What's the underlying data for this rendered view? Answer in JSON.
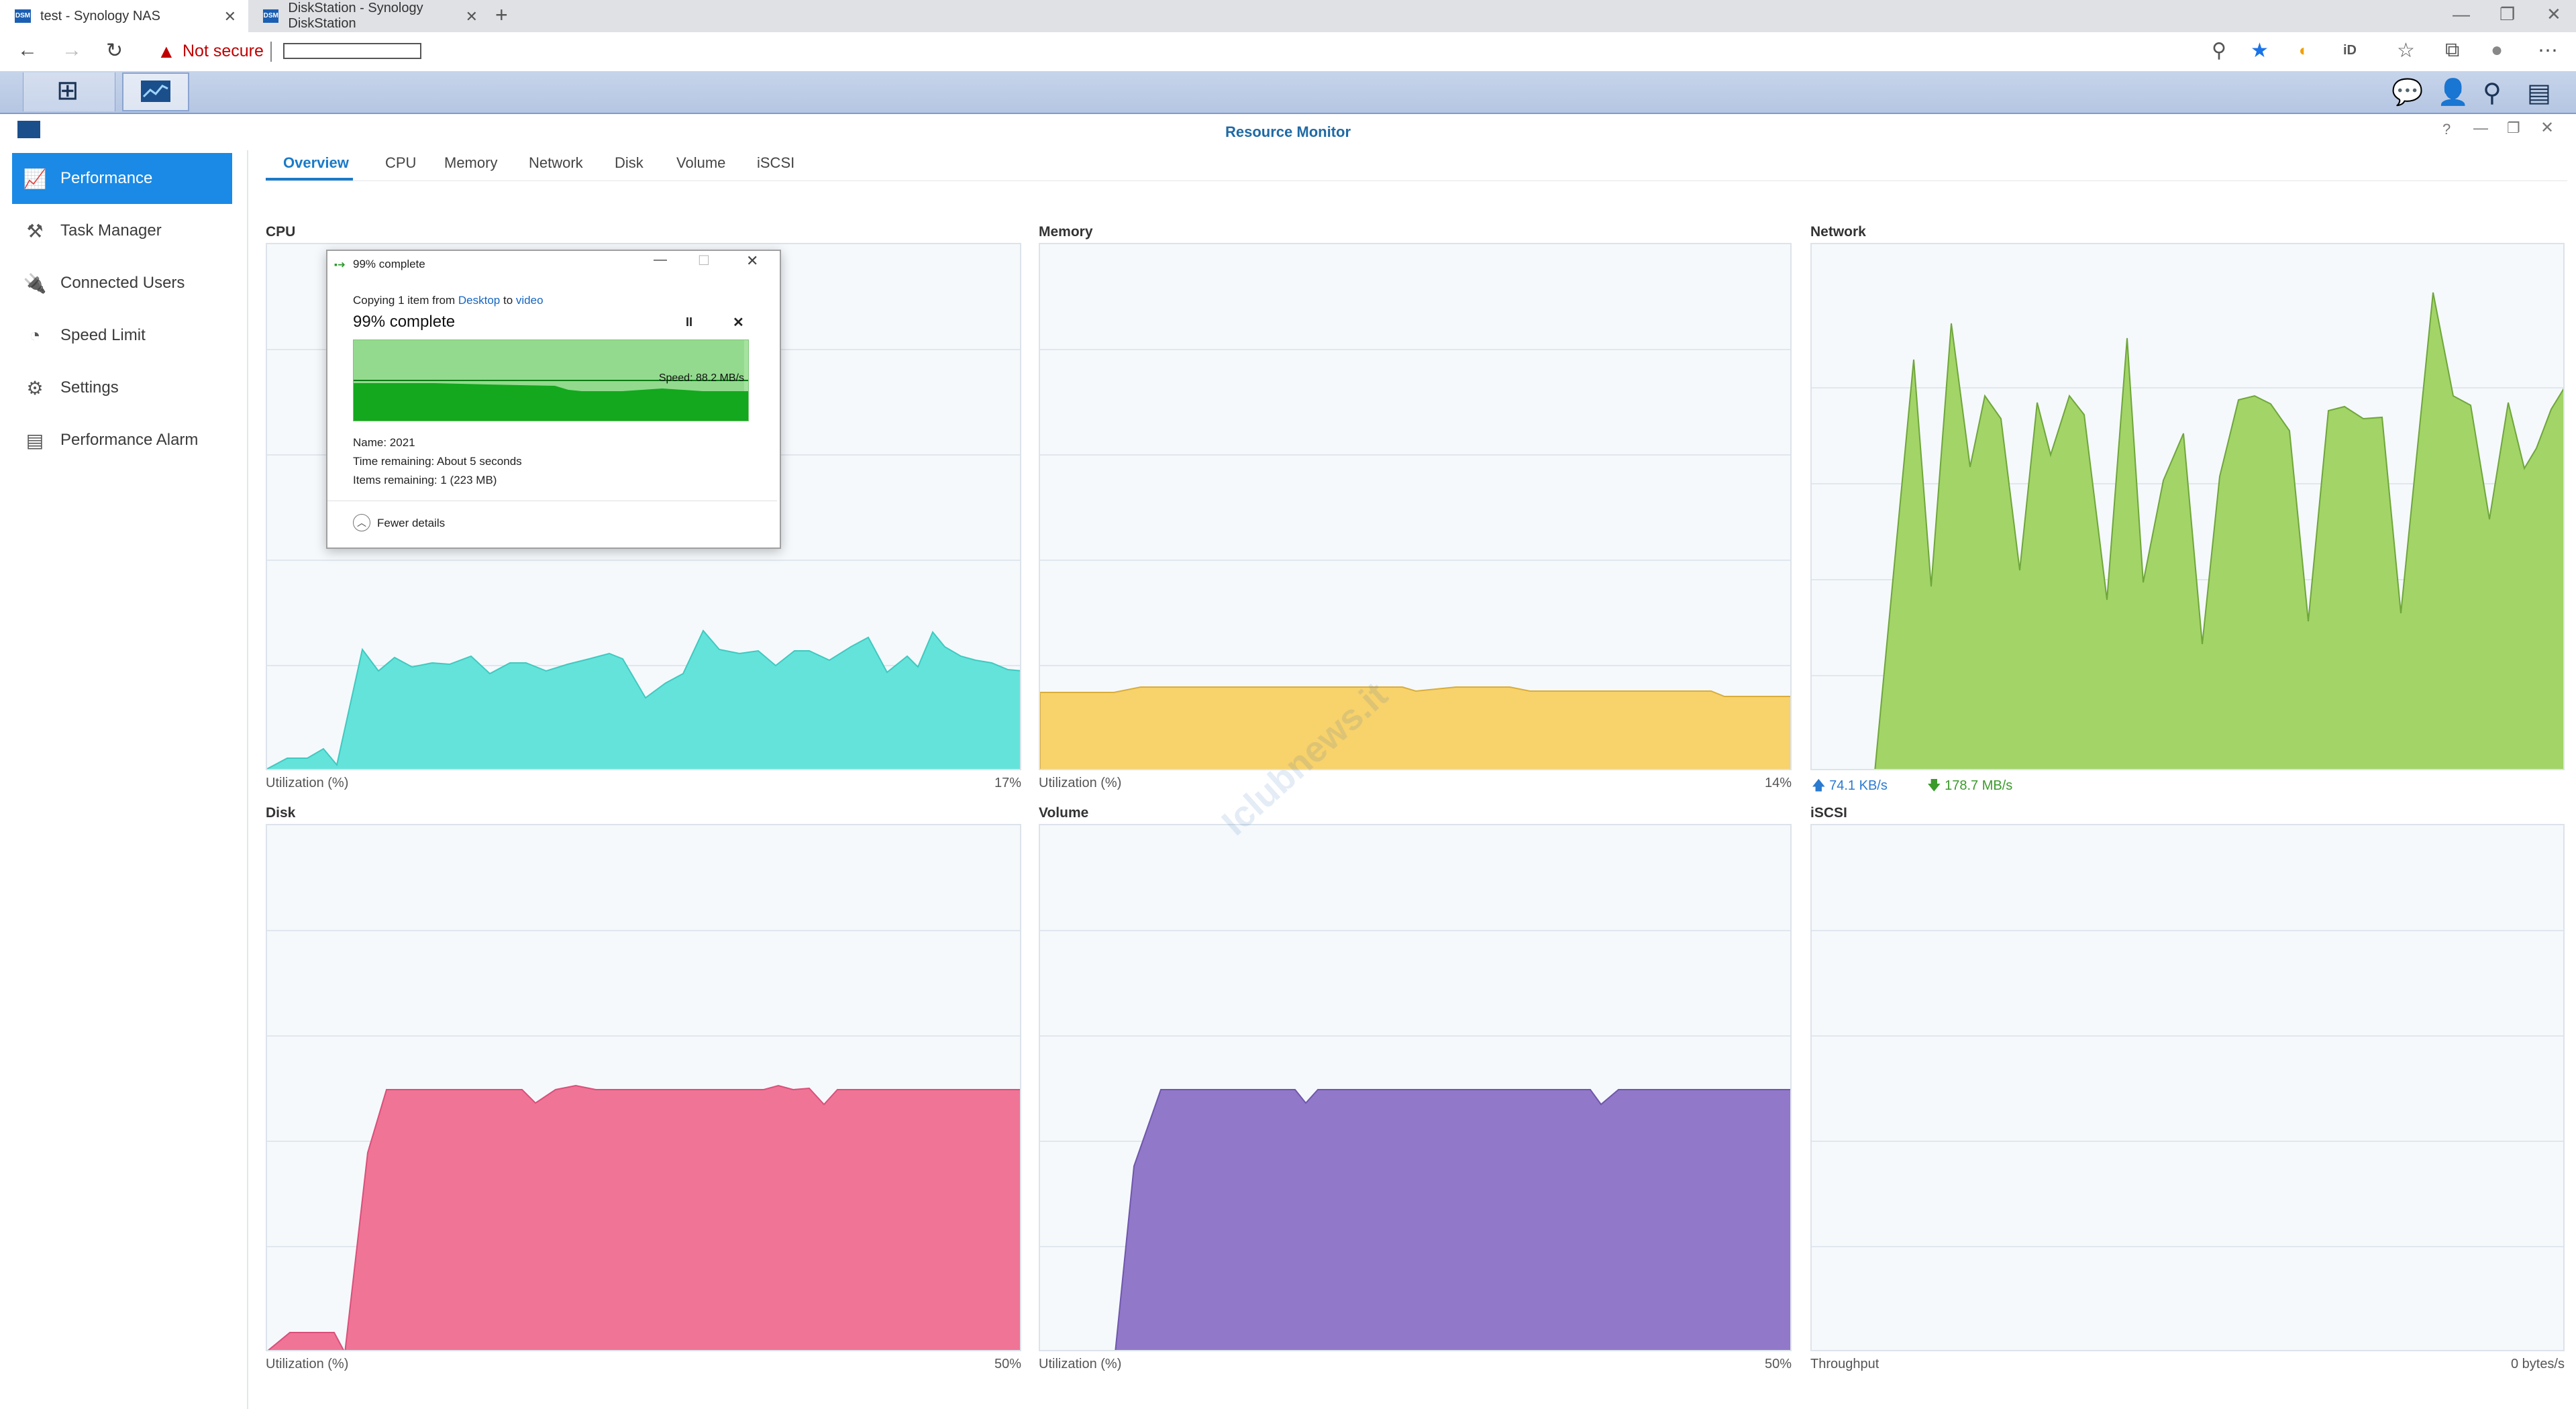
{
  "browser": {
    "tabs": [
      {
        "label": "test - Synology NAS",
        "favicon": "DSM"
      },
      {
        "label": "DiskStation - Synology DiskStation",
        "favicon": "DSM"
      }
    ],
    "new_tab": "+",
    "not_secure": "Not secure",
    "url": ""
  },
  "window": {
    "title": "Resource Monitor"
  },
  "sidebar": {
    "items": [
      {
        "label": "Performance",
        "icon": "chart-line-icon",
        "active": true
      },
      {
        "label": "Task Manager",
        "icon": "task-manager-icon",
        "active": false
      },
      {
        "label": "Connected Users",
        "icon": "plug-icon",
        "active": false
      },
      {
        "label": "Speed Limit",
        "icon": "speedometer-icon",
        "active": false
      },
      {
        "label": "Settings",
        "icon": "gear-icon",
        "active": false
      },
      {
        "label": "Performance Alarm",
        "icon": "alarm-list-icon",
        "active": false
      }
    ]
  },
  "tabs": [
    {
      "label": "Overview",
      "active": true
    },
    {
      "label": "CPU"
    },
    {
      "label": "Memory"
    },
    {
      "label": "Network"
    },
    {
      "label": "Disk"
    },
    {
      "label": "Volume"
    },
    {
      "label": "iSCSI"
    }
  ],
  "panels": {
    "cpu": {
      "title": "CPU",
      "footer_label": "Utilization (%)",
      "footer_value": "17%",
      "color": "#64e3db"
    },
    "memory": {
      "title": "Memory",
      "footer_label": "Utilization (%)",
      "footer_value": "14%",
      "color": "#f8d26b"
    },
    "network": {
      "title": "Network",
      "upload": "74.1 KB/s",
      "download": "178.7 MB/s",
      "color": "#a2d468"
    },
    "disk": {
      "title": "Disk",
      "footer_label": "Utilization (%)",
      "footer_value": "50%",
      "color": "#f07496"
    },
    "volume": {
      "title": "Volume",
      "footer_label": "Utilization (%)",
      "footer_value": "50%",
      "color": "#9178c8"
    },
    "iscsi": {
      "title": "iSCSI",
      "footer_label": "Throughput",
      "footer_value": "0 bytes/s"
    }
  },
  "copy_dialog": {
    "title": "99% complete",
    "copying_prefix": "Copying 1 item from",
    "source": "Desktop",
    "to_word": "to",
    "destination": "video",
    "heading": "99% complete",
    "speed": "Speed: 88.2 MB/s",
    "progress": 0.99,
    "name": "Name:  2021",
    "time_remaining": "Time remaining:  About 5 seconds",
    "items_remaining": "Items remaining:  1 (223 MB)",
    "fewer_details": "Fewer details"
  },
  "watermark": "Iclubnews.it"
}
